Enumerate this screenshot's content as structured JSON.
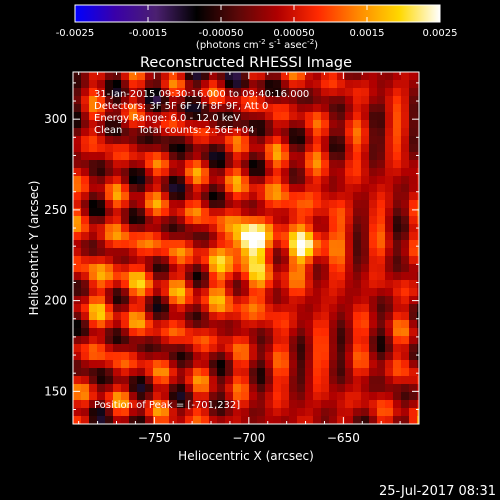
{
  "colorbar": {
    "min": -0.0025,
    "max": 0.0025,
    "ticks": [
      "-0.0025",
      "-0.0015",
      "-0.00050",
      "0.00050",
      "0.0015",
      "0.0025"
    ],
    "unit_label_parts": [
      "(photons cm",
      "-2",
      " s",
      "-1",
      " asec",
      "-2",
      ")"
    ]
  },
  "chart_data": {
    "type": "heatmap",
    "title": "Reconstructed RHESSI Image",
    "xlabel": "Heliocentric X (arcsec)",
    "ylabel": "Heliocentric Y (arcsec)",
    "xlim": [
      -793,
      -610
    ],
    "ylim": [
      132,
      326
    ],
    "xticks": [
      -750,
      -700,
      -650
    ],
    "yticks": [
      150,
      200,
      250,
      300
    ],
    "xtick_labels": [
      "−750",
      "−700",
      "−650"
    ],
    "ytick_labels": [
      "150",
      "200",
      "250",
      "300"
    ],
    "info_lines": [
      "31-Jan-2015 09:30:16.000 to 09:40:16.000",
      "Detectors: 3F 5F 6F 7F 8F 9F, Att 0",
      "Energy Range: 6.0 - 12.0 keV",
      "Clean     Total counts: 2.56E+04"
    ],
    "peak_label": "Position of Peak = [-701,232]",
    "peak_position": [
      -701,
      232
    ],
    "colormap": [
      "#0000ff",
      "#3a00a8",
      "#4b2070",
      "#000000",
      "#5a0808",
      "#b00000",
      "#ff2a00",
      "#ff8a00",
      "#ffd800",
      "#ffffff"
    ]
  },
  "footer": {
    "timestamp": "25-Jul-2017 08:31"
  }
}
